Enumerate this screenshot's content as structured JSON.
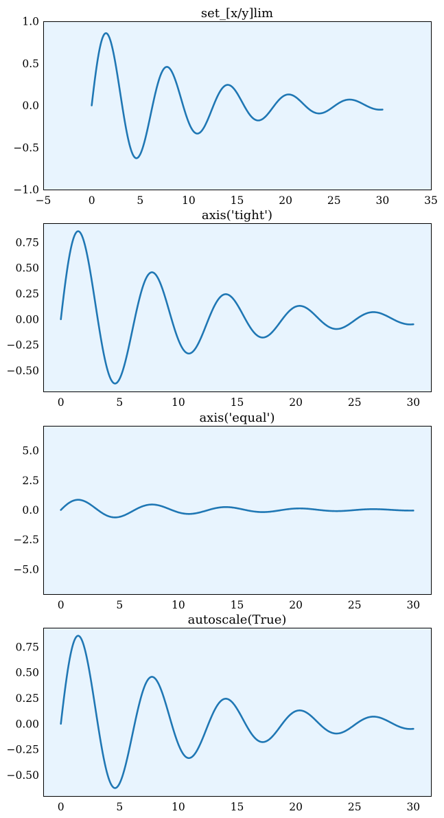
{
  "figure": {
    "background": "#ffffff",
    "axes_facecolor": "#e8f4fe",
    "line_color": "#1f77b4"
  },
  "chart_data": [
    {
      "type": "line",
      "title": "set_[x/y]lim",
      "xlim": [
        -5,
        35
      ],
      "ylim": [
        -1.0,
        1.0
      ],
      "xticks": [
        -5,
        0,
        5,
        10,
        15,
        20,
        25,
        30,
        35
      ],
      "xtick_labels": [
        "−5",
        "0",
        "5",
        "10",
        "15",
        "20",
        "25",
        "30",
        "35"
      ],
      "yticks": [
        -1.0,
        -0.5,
        0.0,
        0.5,
        1.0
      ],
      "ytick_labels": [
        "−1.0",
        "−0.5",
        "0.0",
        "0.5",
        "1.0"
      ],
      "grid": false,
      "series": [
        {
          "function": "y = exp(-x/10) * sin(x)",
          "x_range": [
            0,
            30
          ]
        }
      ]
    },
    {
      "type": "line",
      "title": "axis('tight')",
      "xlim": [
        -1.5,
        31.5
      ],
      "ylim": [
        -0.705,
        0.937
      ],
      "xticks": [
        0,
        5,
        10,
        15,
        20,
        25,
        30
      ],
      "xtick_labels": [
        "0",
        "5",
        "10",
        "15",
        "20",
        "25",
        "30"
      ],
      "yticks": [
        -0.5,
        -0.25,
        0.0,
        0.25,
        0.5,
        0.75
      ],
      "ytick_labels": [
        "−0.50",
        "−0.25",
        "0.00",
        "0.25",
        "0.50",
        "0.75"
      ],
      "grid": false,
      "series": [
        {
          "function": "y = exp(-x/10) * sin(x)",
          "x_range": [
            0,
            30
          ]
        }
      ]
    },
    {
      "type": "line",
      "title": "axis('equal')",
      "xlim": [
        -1.5,
        31.5
      ],
      "ylim": [
        -7.1,
        7.1
      ],
      "xticks": [
        0,
        5,
        10,
        15,
        20,
        25,
        30
      ],
      "xtick_labels": [
        "0",
        "5",
        "10",
        "15",
        "20",
        "25",
        "30"
      ],
      "yticks": [
        -5.0,
        -2.5,
        0.0,
        2.5,
        5.0
      ],
      "ytick_labels": [
        "−5.0",
        "−2.5",
        "0.0",
        "2.5",
        "5.0"
      ],
      "grid": false,
      "series": [
        {
          "function": "y = exp(-x/10) * sin(x)",
          "x_range": [
            0,
            30
          ]
        }
      ]
    },
    {
      "type": "line",
      "title": "autoscale(True)",
      "xlim": [
        -1.5,
        31.5
      ],
      "ylim": [
        -0.705,
        0.937
      ],
      "xticks": [
        0,
        5,
        10,
        15,
        20,
        25,
        30
      ],
      "xtick_labels": [
        "0",
        "5",
        "10",
        "15",
        "20",
        "25",
        "30"
      ],
      "yticks": [
        -0.5,
        -0.25,
        0.0,
        0.25,
        0.5,
        0.75
      ],
      "ytick_labels": [
        "−0.50",
        "−0.25",
        "0.00",
        "0.25",
        "0.50",
        "0.75"
      ],
      "grid": false,
      "series": [
        {
          "function": "y = exp(-x/10) * sin(x)",
          "x_range": [
            0,
            30
          ]
        }
      ]
    }
  ]
}
